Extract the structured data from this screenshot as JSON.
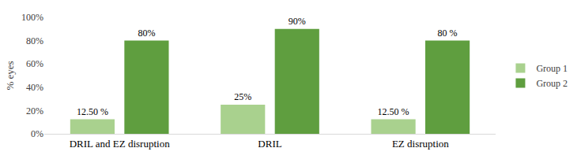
{
  "chart_data": {
    "type": "bar",
    "categories": [
      "DRIL and EZ disruption",
      "DRIL",
      "EZ disruption"
    ],
    "series": [
      {
        "name": "Group 1",
        "color": "#a9d18e",
        "values": [
          12.5,
          25,
          12.5
        ],
        "value_labels": [
          "12.50 %",
          "25%",
          "12.50 %"
        ]
      },
      {
        "name": "Group 2",
        "color": "#5f9e3f",
        "values": [
          80,
          90,
          80
        ],
        "value_labels": [
          "80%",
          "90%",
          "80 %"
        ]
      }
    ],
    "y_label": "% eyes",
    "ylim": [
      0,
      100
    ],
    "yticks": [
      {
        "value": 0,
        "label": "0%"
      },
      {
        "value": 20,
        "label": "20%"
      },
      {
        "value": 40,
        "label": "40%"
      },
      {
        "value": 60,
        "label": "60%"
      },
      {
        "value": 80,
        "label": "80%"
      },
      {
        "value": 100,
        "label": "100%"
      }
    ],
    "grid": false,
    "legend": "right",
    "data_labels": true
  }
}
